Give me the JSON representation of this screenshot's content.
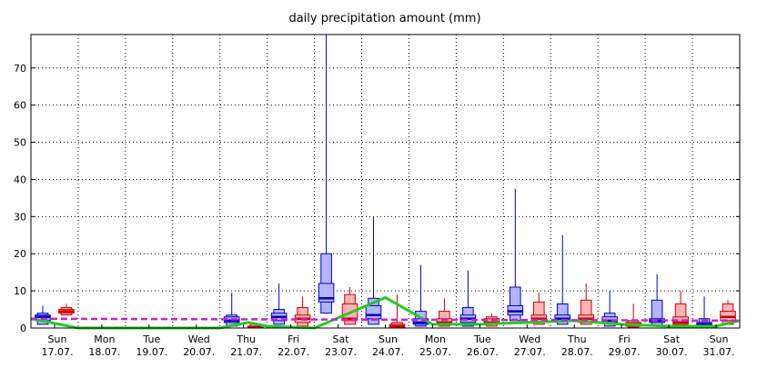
{
  "chart_data": {
    "type": "boxplot",
    "title": "daily precipitation amount (mm)",
    "xlabel": "",
    "ylabel": "",
    "ylim": [
      0,
      79
    ],
    "yticks": [
      0,
      10,
      20,
      30,
      40,
      50,
      60,
      70
    ],
    "grid": true,
    "day_labels": [
      {
        "weekday": "Sun",
        "date": "17.07."
      },
      {
        "weekday": "Mon",
        "date": "18.07."
      },
      {
        "weekday": "Tue",
        "date": "19.07."
      },
      {
        "weekday": "Wed",
        "date": "20.07."
      },
      {
        "weekday": "Thu",
        "date": "21.07."
      },
      {
        "weekday": "Fri",
        "date": "22.07."
      },
      {
        "weekday": "Sat",
        "date": "23.07."
      },
      {
        "weekday": "Sun",
        "date": "24.07."
      },
      {
        "weekday": "Mon",
        "date": "25.07."
      },
      {
        "weekday": "Tue",
        "date": "26.07."
      },
      {
        "weekday": "Wed",
        "date": "27.07."
      },
      {
        "weekday": "Thu",
        "date": "28.07."
      },
      {
        "weekday": "Fri",
        "date": "29.07."
      },
      {
        "weekday": "Sat",
        "date": "30.07."
      },
      {
        "weekday": "Sun",
        "date": "31.07."
      }
    ],
    "colors": {
      "blue_fill": "#b4b4ff",
      "blue_line": "#0000cc",
      "red_fill": "#ffb4b4",
      "red_line": "#cc0000",
      "green": "#22cc22",
      "magenta": "#cc22cc",
      "grid": "#000000"
    },
    "series": [
      {
        "color": "blue",
        "boxes": [
          {
            "x": 0.25,
            "min": 0,
            "p10": 1.0,
            "p25": 2.0,
            "median": 3.0,
            "p75": 3.5,
            "p90": 4.0,
            "max": 6.0
          },
          {
            "x": 4.25,
            "min": 0,
            "p10": 0.5,
            "p25": 1.5,
            "median": 2.0,
            "p75": 3.0,
            "p90": 3.5,
            "max": 9.5
          },
          {
            "x": 5.25,
            "min": 0,
            "p10": 1.0,
            "p25": 2.0,
            "median": 3.0,
            "p75": 4.0,
            "p90": 5.0,
            "max": 12.0
          },
          {
            "x": 6.25,
            "min": 0,
            "p10": 4.0,
            "p25": 7.0,
            "median": 8.0,
            "p75": 12.0,
            "p90": 20.0,
            "max": 79.0
          },
          {
            "x": 7.25,
            "min": 0,
            "p10": 1.0,
            "p25": 2.5,
            "median": 3.5,
            "p75": 6.0,
            "p90": 8.0,
            "max": 30.0
          },
          {
            "x": 8.25,
            "min": 0,
            "p10": 0.5,
            "p25": 1.0,
            "median": 1.5,
            "p75": 2.5,
            "p90": 4.5,
            "max": 17.0
          },
          {
            "x": 9.25,
            "min": 0,
            "p10": 0.5,
            "p25": 1.5,
            "median": 2.5,
            "p75": 3.5,
            "p90": 5.5,
            "max": 15.5
          },
          {
            "x": 10.25,
            "min": 0,
            "p10": 2.0,
            "p25": 3.5,
            "median": 4.5,
            "p75": 6.0,
            "p90": 11.0,
            "max": 37.5
          },
          {
            "x": 11.25,
            "min": 0,
            "p10": 1.0,
            "p25": 2.0,
            "median": 2.5,
            "p75": 3.5,
            "p90": 6.5,
            "max": 25.0
          },
          {
            "x": 12.25,
            "min": 0,
            "p10": 0.5,
            "p25": 1.5,
            "median": 2.0,
            "p75": 3.0,
            "p90": 4.0,
            "max": 10.0
          },
          {
            "x": 13.25,
            "min": 0,
            "p10": 0.5,
            "p25": 1.5,
            "median": 2.0,
            "p75": 2.5,
            "p90": 7.5,
            "max": 14.5
          },
          {
            "x": 14.25,
            "min": 0,
            "p10": 0.2,
            "p25": 0.5,
            "median": 1.0,
            "p75": 1.5,
            "p90": 2.5,
            "max": 8.5
          }
        ]
      },
      {
        "color": "red",
        "boxes": [
          {
            "x": 0.75,
            "min": 3.0,
            "p10": 3.5,
            "p25": 4.0,
            "median": 4.5,
            "p75": 5.0,
            "p90": 5.5,
            "max": 6.5
          },
          {
            "x": 4.75,
            "min": 0,
            "p10": 0,
            "p25": 0,
            "median": 0.2,
            "p75": 0.5,
            "p90": 1.0,
            "max": 1.5
          },
          {
            "x": 5.75,
            "min": 0,
            "p10": 0.5,
            "p25": 1.5,
            "median": 2.5,
            "p75": 3.5,
            "p90": 5.5,
            "max": 8.5
          },
          {
            "x": 6.75,
            "min": 0,
            "p10": 1.0,
            "p25": 2.0,
            "median": 2.5,
            "p75": 6.5,
            "p90": 9.0,
            "max": 11.0
          },
          {
            "x": 7.75,
            "min": 0,
            "p10": 0,
            "p25": 0.2,
            "median": 0.5,
            "p75": 1.0,
            "p90": 1.5,
            "max": 9.0
          },
          {
            "x": 8.75,
            "min": 0,
            "p10": 0.5,
            "p25": 1.0,
            "median": 1.5,
            "p75": 2.5,
            "p90": 4.5,
            "max": 8.0
          },
          {
            "x": 9.75,
            "min": 0,
            "p10": 0.5,
            "p25": 1.0,
            "median": 1.5,
            "p75": 2.5,
            "p90": 3.0,
            "max": 4.0
          },
          {
            "x": 10.75,
            "min": 0,
            "p10": 1.0,
            "p25": 1.5,
            "median": 2.5,
            "p75": 3.5,
            "p90": 7.0,
            "max": 9.5
          },
          {
            "x": 11.75,
            "min": 0,
            "p10": 1.0,
            "p25": 1.5,
            "median": 2.5,
            "p75": 3.5,
            "p90": 7.5,
            "max": 12.0
          },
          {
            "x": 12.75,
            "min": 0,
            "p10": 0.2,
            "p25": 0.5,
            "median": 1.0,
            "p75": 1.5,
            "p90": 2.0,
            "max": 6.5
          },
          {
            "x": 13.75,
            "min": 0,
            "p10": 0.5,
            "p25": 1.0,
            "median": 1.5,
            "p75": 3.0,
            "p90": 6.5,
            "max": 10.0
          },
          {
            "x": 14.75,
            "min": 0,
            "p10": 1.0,
            "p25": 2.0,
            "median": 3.0,
            "p75": 4.5,
            "p90": 6.5,
            "max": 7.5
          }
        ]
      },
      {
        "color": "green",
        "line": [
          {
            "x": 0.0,
            "y": 2.5
          },
          {
            "x": 1.0,
            "y": 0.0
          },
          {
            "x": 2.0,
            "y": 0.0
          },
          {
            "x": 3.0,
            "y": 0.0
          },
          {
            "x": 4.0,
            "y": 0.0
          },
          {
            "x": 4.6,
            "y": 1.5
          },
          {
            "x": 5.0,
            "y": 0.5
          },
          {
            "x": 6.0,
            "y": 0.0
          },
          {
            "x": 7.5,
            "y": 8.2
          },
          {
            "x": 8.5,
            "y": 1.0
          },
          {
            "x": 9.5,
            "y": 1.0
          },
          {
            "x": 10.5,
            "y": 1.5
          },
          {
            "x": 11.5,
            "y": 2.0
          },
          {
            "x": 12.5,
            "y": 1.0
          },
          {
            "x": 13.5,
            "y": 0.5
          },
          {
            "x": 14.5,
            "y": 0.5
          },
          {
            "x": 15.0,
            "y": 2.0
          }
        ]
      },
      {
        "color": "magenta",
        "style": "dashed",
        "line": [
          {
            "x": 0.0,
            "y": 2.5
          },
          {
            "x": 15.0,
            "y": 2.0
          }
        ]
      }
    ]
  }
}
